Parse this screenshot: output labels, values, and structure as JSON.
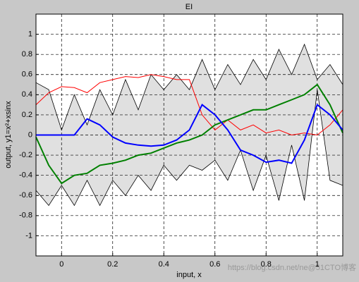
{
  "chart_data": {
    "type": "line",
    "title": "EI",
    "xlabel": "input, x",
    "ylabel": "output, y1=x²+xsinx",
    "annotation": "https://blog.csdn.net/ne@51CTO博客",
    "x": [
      -0.1,
      -0.05,
      0,
      0.05,
      0.1,
      0.15,
      0.2,
      0.25,
      0.3,
      0.35,
      0.4,
      0.45,
      0.5,
      0.55,
      0.6,
      0.65,
      0.7,
      0.75,
      0.8,
      0.85,
      0.9,
      0.95,
      1.0,
      1.05,
      1.1
    ],
    "band": {
      "color": "#e0e0e0",
      "edge": "#000000",
      "upper": [
        0.52,
        0.45,
        0.05,
        0.4,
        0.1,
        0.45,
        0.2,
        0.55,
        0.25,
        0.6,
        0.45,
        0.6,
        0.45,
        0.75,
        0.45,
        0.7,
        0.5,
        0.75,
        0.55,
        0.85,
        0.6,
        0.9,
        0.55,
        0.7,
        0.5
      ],
      "lower": [
        -0.55,
        -0.7,
        -0.5,
        -0.7,
        -0.45,
        -0.7,
        -0.45,
        -0.6,
        -0.4,
        -0.55,
        -0.3,
        -0.45,
        -0.3,
        -0.35,
        -0.25,
        -0.45,
        -0.15,
        -0.55,
        -0.2,
        -0.65,
        -0.1,
        -0.65,
        0.45,
        -0.45,
        -0.5
      ]
    },
    "series": [
      {
        "color": "#ff0000",
        "width": 1,
        "values": [
          0.3,
          0.42,
          0.48,
          0.47,
          0.42,
          0.52,
          0.55,
          0.58,
          0.57,
          0.6,
          0.58,
          0.55,
          0.55,
          0.2,
          0.05,
          0.15,
          0.05,
          0.1,
          0.02,
          0.05,
          0,
          0.02,
          0,
          0.1,
          0.25
        ]
      },
      {
        "color": "#008000",
        "width": 2,
        "values": [
          -0.02,
          -0.3,
          -0.48,
          -0.4,
          -0.38,
          -0.3,
          -0.28,
          -0.25,
          -0.2,
          -0.18,
          -0.13,
          -0.08,
          -0.05,
          0,
          0.1,
          0.15,
          0.2,
          0.25,
          0.25,
          0.3,
          0.35,
          0.4,
          0.5,
          0.3,
          0.02
        ]
      },
      {
        "color": "#0000ff",
        "width": 2,
        "values": [
          0,
          0,
          0,
          0,
          0.16,
          0.1,
          -0.02,
          -0.08,
          -0.1,
          -0.11,
          -0.1,
          -0.05,
          0.05,
          0.3,
          0.2,
          0.05,
          -0.15,
          -0.2,
          -0.27,
          -0.25,
          -0.28,
          -0.05,
          0.3,
          0.2,
          0.05
        ]
      }
    ],
    "xlim": [
      -0.1,
      1.1
    ],
    "xticks": [
      0,
      0.2,
      0.4,
      0.6,
      0.8,
      1
    ],
    "ylim": [
      -1.2,
      1.2
    ],
    "yticks": [
      -1,
      -0.8,
      -0.6,
      -0.4,
      -0.2,
      0,
      0.2,
      0.4,
      0.6,
      0.8,
      1
    ],
    "grid": true
  }
}
